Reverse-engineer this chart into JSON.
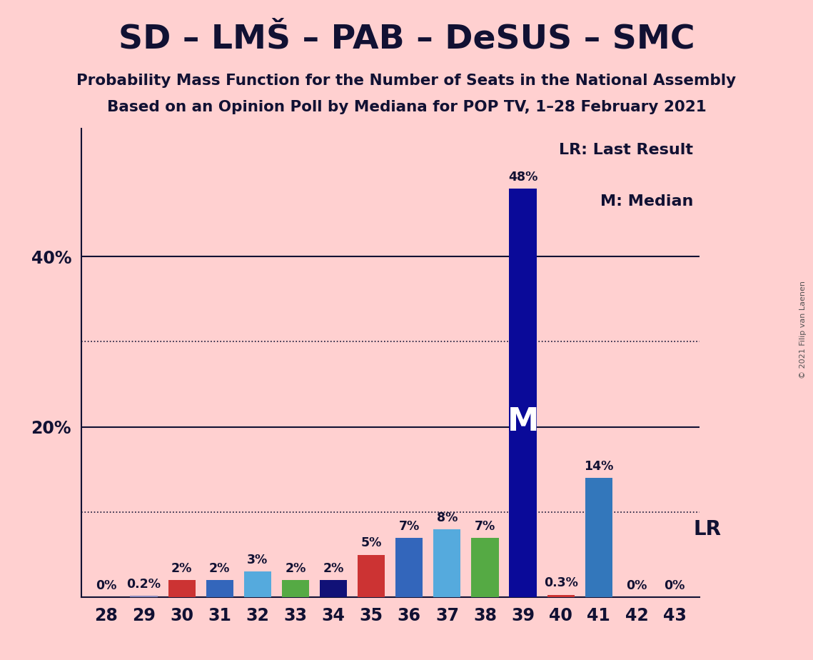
{
  "title": "SD – LMŠ – PAB – DeSUS – SMC",
  "subtitle1": "Probability Mass Function for the Number of Seats in the National Assembly",
  "subtitle2": "Based on an Opinion Poll by Mediana for POP TV, 1–28 February 2021",
  "copyright": "© 2021 Filip van Laenen",
  "seats": [
    28,
    29,
    30,
    31,
    32,
    33,
    34,
    35,
    36,
    37,
    38,
    39,
    40,
    41,
    42,
    43
  ],
  "values": [
    0.0,
    0.2,
    2.0,
    2.0,
    3.0,
    2.0,
    2.0,
    5.0,
    7.0,
    8.0,
    7.0,
    48.0,
    0.3,
    14.0,
    0.0,
    0.0
  ],
  "labels": [
    "0%",
    "0.2%",
    "2%",
    "2%",
    "3%",
    "2%",
    "2%",
    "5%",
    "7%",
    "8%",
    "7%",
    "48%",
    "0.3%",
    "14%",
    "0%",
    "0%"
  ],
  "bar_colors": [
    "#BBBBCC",
    "#8888BB",
    "#CC3333",
    "#3366BB",
    "#55AADD",
    "#55AA44",
    "#111177",
    "#CC3333",
    "#3366BB",
    "#55AADD",
    "#55AA44",
    "#0A0A99",
    "#CC3333",
    "#3377BB",
    "#3377BB",
    "#3377BB"
  ],
  "median_seat": 39,
  "median_label": "M",
  "lr_label": "LR",
  "background_color": "#FFD0D0",
  "title_color": "#111133",
  "solid_gridlines": [
    20.0,
    40.0
  ],
  "dotted_gridlines": [
    10.0,
    30.0
  ],
  "ylim_max": 55,
  "legend_lr": "LR: Last Result",
  "legend_m": "M: Median"
}
